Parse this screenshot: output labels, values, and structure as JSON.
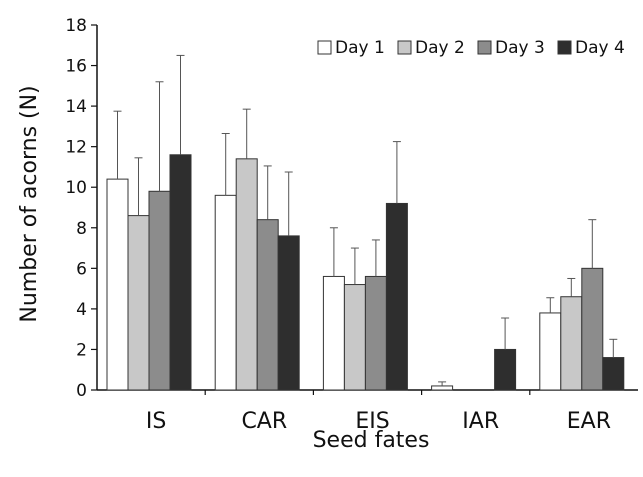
{
  "chart_data": {
    "type": "bar",
    "xlabel": "Seed fates",
    "ylabel": "Number of acorns (N)",
    "ylim": [
      0,
      18
    ],
    "yticks": [
      0,
      2,
      4,
      6,
      8,
      10,
      12,
      14,
      16,
      18
    ],
    "categories": [
      "IS",
      "CAR",
      "EIS",
      "IAR",
      "EAR"
    ],
    "legend_position": "top-right",
    "grid": false,
    "error_bars": "upper",
    "series": [
      {
        "name": "Day 1",
        "color": "#ffffff",
        "values": [
          10.4,
          9.6,
          5.6,
          0.2,
          3.8
        ],
        "errors": [
          3.35,
          3.05,
          2.4,
          0.2,
          0.75
        ]
      },
      {
        "name": "Day 2",
        "color": "#c8c8c8",
        "values": [
          8.6,
          11.4,
          5.2,
          0,
          4.6
        ],
        "errors": [
          2.85,
          2.45,
          1.8,
          0,
          0.9
        ]
      },
      {
        "name": "Day 3",
        "color": "#8c8c8c",
        "values": [
          9.8,
          8.4,
          5.6,
          0,
          6.0
        ],
        "errors": [
          5.4,
          2.65,
          1.8,
          0,
          2.4
        ]
      },
      {
        "name": "Day 4",
        "color": "#2e2e2e",
        "values": [
          11.6,
          7.6,
          9.2,
          2.0,
          1.6
        ],
        "errors": [
          4.9,
          3.15,
          3.05,
          1.55,
          0.9
        ]
      }
    ]
  }
}
